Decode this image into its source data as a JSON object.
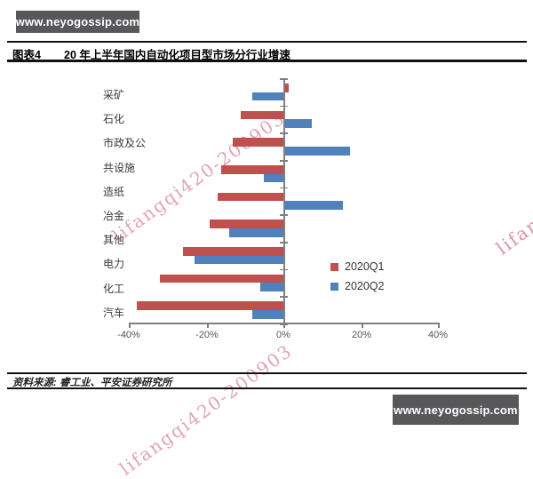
{
  "page": {
    "watermark_badge_top": "www.neyogossip.com",
    "watermark_badge_bottom": "www.neyogossip.com",
    "watermark_diagonal": "lifangqi420-200903",
    "colors": {
      "badge_bg": "#58585a",
      "bar_red": "#c0504d",
      "bar_blue": "#4f81bd",
      "watermark_pink": "#c9476e",
      "axis_gray": "#7f7f7f"
    }
  },
  "header": {
    "figure_label": "图表4",
    "title": "20 年上半年国内自动化项目型市场分行业增速"
  },
  "chart_data": {
    "type": "bar",
    "orientation": "horizontal",
    "title": "20 年上半年国内自动化项目型市场分行业增速",
    "categories": [
      "采矿",
      "石化",
      "市政及公共设施",
      "造纸",
      "冶金",
      "其他",
      "电力",
      "化工",
      "汽车"
    ],
    "category_display_lines": [
      "采矿",
      "石化",
      "市政及公",
      "共设施",
      "造纸",
      "冶金",
      "其他",
      "电力",
      "化工",
      "汽车"
    ],
    "series": [
      {
        "name": "2020Q1",
        "color": "#c0504d",
        "values": [
          1,
          -11,
          -13,
          -16,
          -17,
          -19,
          -26,
          -32,
          -38
        ]
      },
      {
        "name": "2020Q2",
        "color": "#4f81bd",
        "values": [
          -8,
          7,
          17,
          -5,
          15,
          -14,
          -23,
          -6,
          -8
        ]
      }
    ],
    "x_ticks": [
      "-40%",
      "-20%",
      "0%",
      "20%",
      "40%"
    ],
    "xlim": [
      -40,
      40
    ],
    "unit": "percent",
    "legend_position": "middle-right",
    "grid": "off"
  },
  "footer": {
    "source": "资料来源: 睿工业、平安证券研究所"
  }
}
